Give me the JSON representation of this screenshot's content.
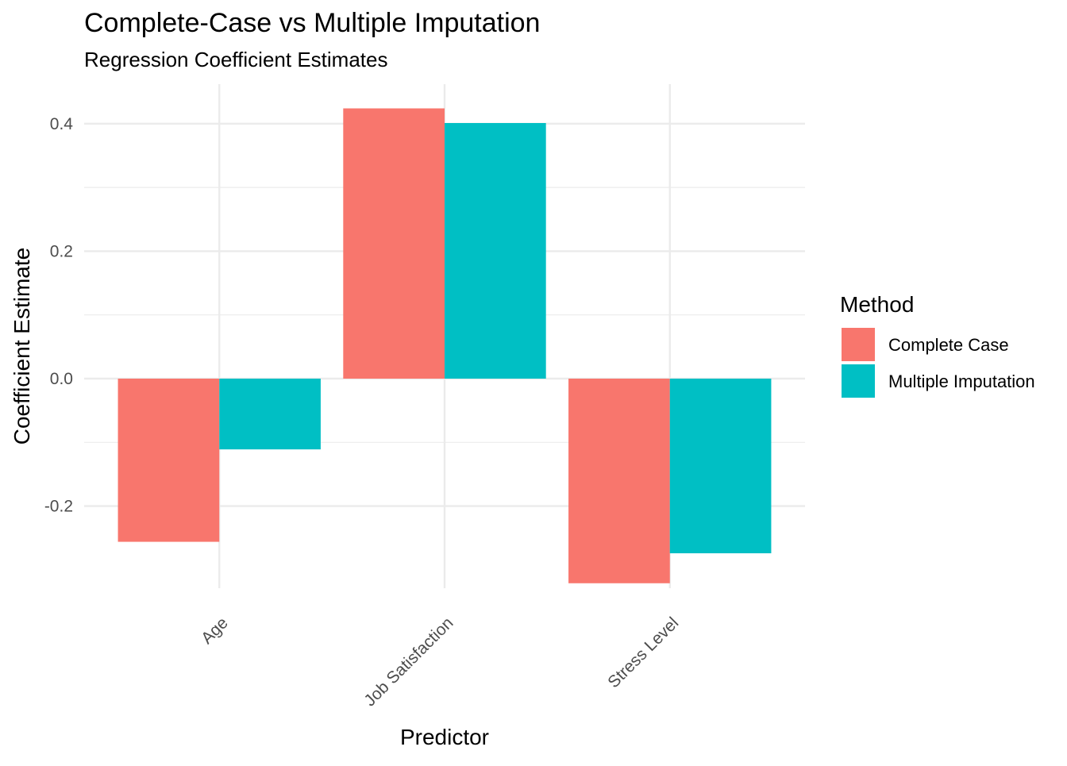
{
  "chart_data": {
    "type": "bar",
    "title": "Complete-Case vs Multiple Imputation",
    "subtitle": "Regression Coefficient Estimates",
    "xlabel": "Predictor",
    "ylabel": "Coefficient Estimate",
    "categories": [
      "Age",
      "Job Satisfaction",
      "Stress Level"
    ],
    "series": [
      {
        "name": "Complete Case",
        "values": [
          -0.256,
          0.424,
          -0.321
        ],
        "color": "#F8766D"
      },
      {
        "name": "Multiple Imputation",
        "values": [
          -0.111,
          0.401,
          -0.274
        ],
        "color": "#00BFC4"
      }
    ],
    "ylim": [
      -0.3,
      0.45
    ],
    "yticks": [
      -0.2,
      0.0,
      0.2,
      0.4
    ],
    "ytick_labels": [
      "-0.2",
      "0.0",
      "0.2",
      "0.4"
    ],
    "grid": true,
    "legend": {
      "title": "Method",
      "position": "right"
    },
    "colors": {
      "grid": "#EBEBEB",
      "text": "#000000",
      "tick_text": "#4D4D4D"
    }
  }
}
